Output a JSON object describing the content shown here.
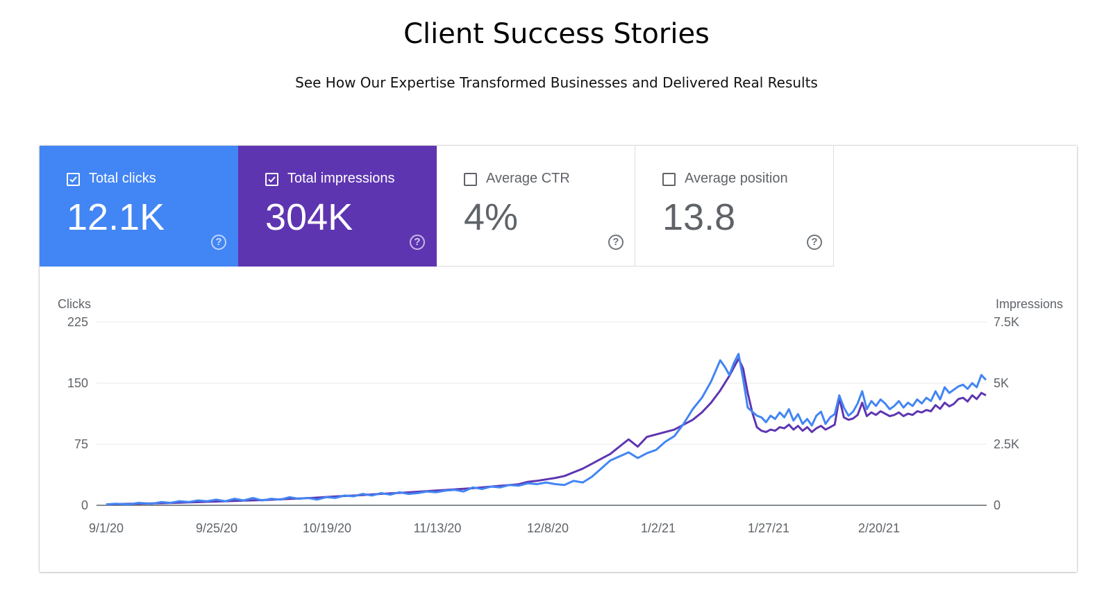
{
  "header": {
    "title": "Client Success Stories",
    "subtitle": "See How Our Expertise Transformed Businesses and Delivered Real Results"
  },
  "metrics": [
    {
      "label": "Total clicks",
      "value": "12.1K",
      "checked": true,
      "color": "#4285f4",
      "help_icon": "question-circle-icon"
    },
    {
      "label": "Total impressions",
      "value": "304K",
      "checked": true,
      "color": "#5e35b1",
      "help_icon": "question-circle-icon"
    },
    {
      "label": "Average CTR",
      "value": "4%",
      "checked": false,
      "color": "#ffffff",
      "help_icon": "question-circle-icon"
    },
    {
      "label": "Average position",
      "value": "13.8",
      "checked": false,
      "color": "#ffffff",
      "help_icon": "question-circle-icon"
    }
  ],
  "chart_data": {
    "type": "line",
    "x_tick_labels": [
      "9/1/20",
      "9/25/20",
      "10/19/20",
      "11/13/20",
      "12/8/20",
      "1/2/21",
      "1/27/21",
      "2/20/21"
    ],
    "x_range_days": [
      0,
      192
    ],
    "y_left": {
      "label": "Clicks",
      "ticks": [
        "225",
        "150",
        "75",
        "0"
      ],
      "range": [
        0,
        225
      ]
    },
    "y_right": {
      "label": "Impressions",
      "ticks": [
        "7.5K",
        "5K",
        "2.5K",
        "0"
      ],
      "range": [
        0,
        7500
      ]
    },
    "grid": true,
    "series": [
      {
        "axis": "left",
        "color": "#4285f4",
        "values": [
          [
            0,
            1
          ],
          [
            2,
            2
          ],
          [
            5,
            1
          ],
          [
            7,
            3
          ],
          [
            10,
            2
          ],
          [
            12,
            4
          ],
          [
            14,
            3
          ],
          [
            16,
            5
          ],
          [
            18,
            4
          ],
          [
            20,
            6
          ],
          [
            22,
            5
          ],
          [
            24,
            7
          ],
          [
            26,
            5
          ],
          [
            28,
            8
          ],
          [
            30,
            6
          ],
          [
            32,
            9
          ],
          [
            34,
            6
          ],
          [
            36,
            8
          ],
          [
            38,
            7
          ],
          [
            40,
            10
          ],
          [
            42,
            8
          ],
          [
            44,
            9
          ],
          [
            46,
            7
          ],
          [
            48,
            10
          ],
          [
            50,
            9
          ],
          [
            52,
            12
          ],
          [
            54,
            11
          ],
          [
            56,
            14
          ],
          [
            58,
            12
          ],
          [
            60,
            15
          ],
          [
            62,
            13
          ],
          [
            64,
            16
          ],
          [
            66,
            14
          ],
          [
            68,
            15
          ],
          [
            70,
            17
          ],
          [
            72,
            16
          ],
          [
            74,
            18
          ],
          [
            76,
            19
          ],
          [
            78,
            17
          ],
          [
            80,
            22
          ],
          [
            82,
            20
          ],
          [
            84,
            23
          ],
          [
            86,
            22
          ],
          [
            88,
            25
          ],
          [
            90,
            24
          ],
          [
            92,
            27
          ],
          [
            94,
            26
          ],
          [
            96,
            28
          ],
          [
            98,
            26
          ],
          [
            100,
            25
          ],
          [
            102,
            30
          ],
          [
            104,
            28
          ],
          [
            106,
            35
          ],
          [
            108,
            45
          ],
          [
            110,
            55
          ],
          [
            112,
            60
          ],
          [
            114,
            65
          ],
          [
            116,
            58
          ],
          [
            118,
            64
          ],
          [
            120,
            68
          ],
          [
            122,
            78
          ],
          [
            124,
            85
          ],
          [
            126,
            100
          ],
          [
            128,
            118
          ],
          [
            130,
            132
          ],
          [
            132,
            152
          ],
          [
            134,
            178
          ],
          [
            135,
            170
          ],
          [
            136,
            160
          ],
          [
            137,
            175
          ],
          [
            138,
            186
          ],
          [
            139,
            155
          ],
          [
            140,
            120
          ],
          [
            141,
            115
          ],
          [
            142,
            110
          ],
          [
            143,
            108
          ],
          [
            144,
            102
          ],
          [
            145,
            110
          ],
          [
            146,
            106
          ],
          [
            147,
            114
          ],
          [
            148,
            108
          ],
          [
            149,
            118
          ],
          [
            150,
            104
          ],
          [
            151,
            112
          ],
          [
            152,
            100
          ],
          [
            153,
            106
          ],
          [
            154,
            98
          ],
          [
            155,
            110
          ],
          [
            156,
            115
          ],
          [
            157,
            100
          ],
          [
            158,
            108
          ],
          [
            159,
            112
          ],
          [
            160,
            135
          ],
          [
            161,
            120
          ],
          [
            162,
            110
          ],
          [
            163,
            115
          ],
          [
            164,
            125
          ],
          [
            165,
            140
          ],
          [
            166,
            118
          ],
          [
            167,
            128
          ],
          [
            168,
            122
          ],
          [
            169,
            130
          ],
          [
            170,
            125
          ],
          [
            171,
            118
          ],
          [
            172,
            122
          ],
          [
            173,
            128
          ],
          [
            174,
            120
          ],
          [
            175,
            126
          ],
          [
            176,
            122
          ],
          [
            177,
            130
          ],
          [
            178,
            125
          ],
          [
            179,
            132
          ],
          [
            180,
            128
          ],
          [
            181,
            140
          ],
          [
            182,
            130
          ],
          [
            183,
            145
          ],
          [
            184,
            138
          ],
          [
            185,
            142
          ],
          [
            186,
            146
          ],
          [
            187,
            148
          ],
          [
            188,
            143
          ],
          [
            189,
            150
          ],
          [
            190,
            145
          ],
          [
            191,
            160
          ],
          [
            192,
            154
          ]
        ]
      },
      {
        "axis": "right",
        "color": "#5e35b1",
        "values": [
          [
            0,
            40
          ],
          [
            5,
            60
          ],
          [
            10,
            80
          ],
          [
            15,
            100
          ],
          [
            20,
            130
          ],
          [
            25,
            160
          ],
          [
            30,
            190
          ],
          [
            35,
            220
          ],
          [
            40,
            260
          ],
          [
            45,
            300
          ],
          [
            50,
            360
          ],
          [
            55,
            410
          ],
          [
            60,
            470
          ],
          [
            65,
            520
          ],
          [
            70,
            580
          ],
          [
            75,
            640
          ],
          [
            80,
            700
          ],
          [
            85,
            780
          ],
          [
            90,
            860
          ],
          [
            92,
            960
          ],
          [
            94,
            1000
          ],
          [
            96,
            1060
          ],
          [
            98,
            1120
          ],
          [
            100,
            1200
          ],
          [
            102,
            1350
          ],
          [
            104,
            1500
          ],
          [
            106,
            1700
          ],
          [
            108,
            1900
          ],
          [
            110,
            2100
          ],
          [
            112,
            2400
          ],
          [
            114,
            2700
          ],
          [
            116,
            2400
          ],
          [
            118,
            2800
          ],
          [
            120,
            2900
          ],
          [
            122,
            3000
          ],
          [
            124,
            3100
          ],
          [
            126,
            3300
          ],
          [
            128,
            3500
          ],
          [
            130,
            3800
          ],
          [
            132,
            4200
          ],
          [
            134,
            4700
          ],
          [
            136,
            5300
          ],
          [
            138,
            6000
          ],
          [
            139,
            5600
          ],
          [
            140,
            4600
          ],
          [
            141,
            3800
          ],
          [
            142,
            3200
          ],
          [
            143,
            3050
          ],
          [
            144,
            3000
          ],
          [
            145,
            3100
          ],
          [
            146,
            3050
          ],
          [
            147,
            3200
          ],
          [
            148,
            3150
          ],
          [
            149,
            3300
          ],
          [
            150,
            3100
          ],
          [
            151,
            3250
          ],
          [
            152,
            3050
          ],
          [
            153,
            3200
          ],
          [
            154,
            3000
          ],
          [
            155,
            3150
          ],
          [
            156,
            3250
          ],
          [
            157,
            3100
          ],
          [
            158,
            3200
          ],
          [
            159,
            3300
          ],
          [
            160,
            4400
          ],
          [
            161,
            3600
          ],
          [
            162,
            3500
          ],
          [
            163,
            3550
          ],
          [
            164,
            3700
          ],
          [
            165,
            4200
          ],
          [
            166,
            3650
          ],
          [
            167,
            3800
          ],
          [
            168,
            3700
          ],
          [
            169,
            3850
          ],
          [
            170,
            3750
          ],
          [
            171,
            3650
          ],
          [
            172,
            3700
          ],
          [
            173,
            3800
          ],
          [
            174,
            3650
          ],
          [
            175,
            3750
          ],
          [
            176,
            3700
          ],
          [
            177,
            3850
          ],
          [
            178,
            3800
          ],
          [
            179,
            3900
          ],
          [
            180,
            3850
          ],
          [
            181,
            4100
          ],
          [
            182,
            3950
          ],
          [
            183,
            4200
          ],
          [
            184,
            4050
          ],
          [
            185,
            4150
          ],
          [
            186,
            4350
          ],
          [
            187,
            4400
          ],
          [
            188,
            4250
          ],
          [
            189,
            4500
          ],
          [
            190,
            4350
          ],
          [
            191,
            4600
          ],
          [
            192,
            4500
          ]
        ]
      }
    ]
  }
}
